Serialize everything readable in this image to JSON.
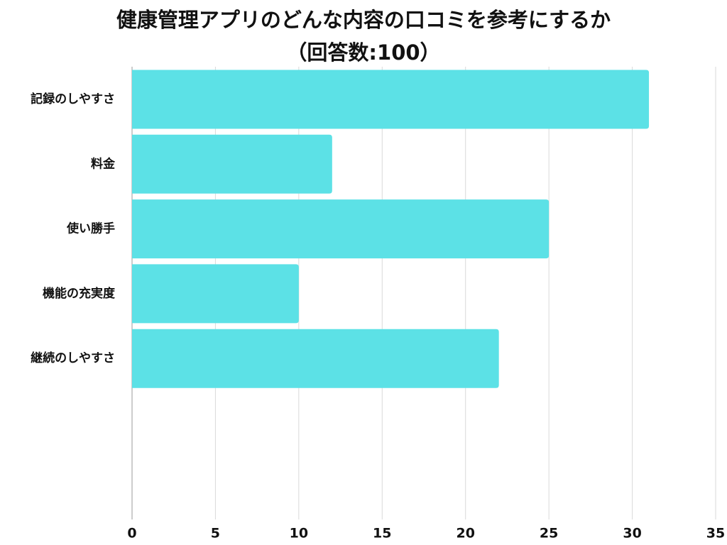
{
  "chart_data": {
    "type": "bar",
    "orientation": "horizontal",
    "title": "健康管理アプリのどんな内容の口コミを参考にするか",
    "subtitle": "（回答数:100）",
    "categories": [
      "記録のしやすさ",
      "料金",
      "使い勝手",
      "機能の充実度",
      "継続のしやすさ"
    ],
    "values": [
      31,
      12,
      25,
      10,
      22
    ],
    "color": "#5ce1e6",
    "xlim": [
      0,
      35
    ],
    "xticks": [
      0,
      5,
      10,
      15,
      20,
      25,
      30,
      35
    ],
    "grid": true
  }
}
